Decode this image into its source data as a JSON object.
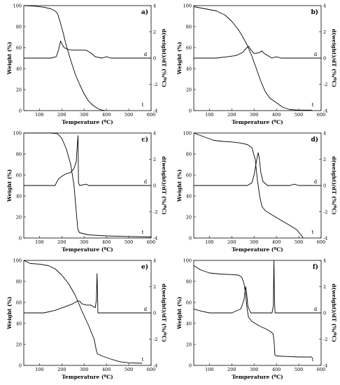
{
  "chart_data": [
    {
      "panel": "a)",
      "type": "line",
      "xlabel": "Temperature (ºC)",
      "ylabel_left": "Weight (%)",
      "ylabel_right": "d(weight)/dT (%/ºC)",
      "xlim": [
        30,
        600
      ],
      "ylim_left": [
        0,
        100
      ],
      "ylim_right": [
        -4,
        4
      ],
      "x_ticks": [
        100,
        200,
        300,
        400,
        500,
        600
      ],
      "y_ticks_left": [
        0,
        20,
        40,
        60,
        80,
        100
      ],
      "y_ticks_right": [
        -4,
        -2,
        0,
        2,
        4
      ],
      "curve_labels": {
        "derivative": "d",
        "tg": "t"
      },
      "series": [
        {
          "name": "t",
          "axis": "left",
          "points": [
            [
              30,
              100
            ],
            [
              80,
              99.5
            ],
            [
              120,
              98.5
            ],
            [
              150,
              97
            ],
            [
              170,
              95
            ],
            [
              182,
              92
            ],
            [
              192,
              85
            ],
            [
              205,
              75
            ],
            [
              220,
              62
            ],
            [
              240,
              48
            ],
            [
              260,
              35
            ],
            [
              280,
              25
            ],
            [
              300,
              16
            ],
            [
              320,
              9
            ],
            [
              340,
              5
            ],
            [
              360,
              2
            ],
            [
              380,
              0.5
            ],
            [
              395,
              0
            ]
          ]
        },
        {
          "name": "d",
          "axis": "right",
          "points": [
            [
              30,
              0
            ],
            [
              150,
              0
            ],
            [
              175,
              0.1
            ],
            [
              185,
              0.6
            ],
            [
              195,
              1.3
            ],
            [
              200,
              1.1
            ],
            [
              210,
              0.8
            ],
            [
              230,
              0.65
            ],
            [
              250,
              0.62
            ],
            [
              280,
              0.62
            ],
            [
              310,
              0.6
            ],
            [
              330,
              0.4
            ],
            [
              350,
              0.1
            ],
            [
              380,
              0
            ],
            [
              400,
              0.1
            ],
            [
              420,
              0
            ],
            [
              600,
              0
            ]
          ]
        }
      ]
    },
    {
      "panel": "b)",
      "type": "line",
      "xlabel": "Temperature (ºC)",
      "ylabel_left": "Weight (%)",
      "ylabel_right": "d(weight)/dT (%/ºC)",
      "xlim": [
        30,
        600
      ],
      "ylim_left": [
        0,
        100
      ],
      "ylim_right": [
        -4,
        4
      ],
      "x_ticks": [
        100,
        200,
        300,
        400,
        500,
        600
      ],
      "y_ticks_left": [
        0,
        20,
        40,
        60,
        80,
        100
      ],
      "y_ticks_right": [
        -4,
        -2,
        0,
        2,
        4
      ],
      "curve_labels": {
        "derivative": "d",
        "tg": "t"
      },
      "series": [
        {
          "name": "t",
          "axis": "left",
          "points": [
            [
              30,
              99
            ],
            [
              80,
              97
            ],
            [
              130,
              95
            ],
            [
              170,
              91
            ],
            [
              200,
              85
            ],
            [
              230,
              77
            ],
            [
              250,
              70
            ],
            [
              270,
              62
            ],
            [
              290,
              52
            ],
            [
              310,
              40
            ],
            [
              330,
              28
            ],
            [
              350,
              18
            ],
            [
              370,
              12
            ],
            [
              390,
              9
            ],
            [
              410,
              6
            ],
            [
              430,
              3
            ],
            [
              460,
              1
            ],
            [
              500,
              0.5
            ],
            [
              560,
              0.5
            ]
          ]
        },
        {
          "name": "d",
          "axis": "right",
          "points": [
            [
              30,
              0
            ],
            [
              130,
              0
            ],
            [
              180,
              0.1
            ],
            [
              220,
              0.2
            ],
            [
              250,
              0.45
            ],
            [
              265,
              0.75
            ],
            [
              275,
              0.9
            ],
            [
              285,
              0.65
            ],
            [
              300,
              0.35
            ],
            [
              320,
              0.4
            ],
            [
              335,
              0.55
            ],
            [
              345,
              0.35
            ],
            [
              360,
              0.2
            ],
            [
              380,
              0
            ],
            [
              400,
              0.1
            ],
            [
              420,
              0
            ],
            [
              600,
              0
            ]
          ]
        }
      ]
    },
    {
      "panel": "c)",
      "type": "line",
      "xlabel": "Temperature (ºC)",
      "ylabel_left": "Weight (%)",
      "ylabel_right": "d(weight)/dT (%/ºC)",
      "xlim": [
        30,
        600
      ],
      "ylim_left": [
        0,
        100
      ],
      "ylim_right": [
        -4,
        4
      ],
      "x_ticks": [
        100,
        200,
        300,
        400,
        500,
        600
      ],
      "y_ticks_left": [
        0,
        20,
        40,
        60,
        80,
        100
      ],
      "y_ticks_right": [
        -4,
        -2,
        0,
        2,
        4
      ],
      "curve_labels": {
        "derivative": "d",
        "tg": "t"
      },
      "series": [
        {
          "name": "t",
          "axis": "left",
          "points": [
            [
              30,
              100
            ],
            [
              150,
              100
            ],
            [
              180,
              99.5
            ],
            [
              200,
              95
            ],
            [
              220,
              85
            ],
            [
              240,
              70
            ],
            [
              255,
              50
            ],
            [
              265,
              25
            ],
            [
              272,
              8
            ],
            [
              280,
              5
            ],
            [
              320,
              3
            ],
            [
              400,
              2
            ],
            [
              500,
              1.5
            ],
            [
              600,
              1
            ]
          ]
        },
        {
          "name": "d",
          "axis": "right",
          "points": [
            [
              30,
              0
            ],
            [
              170,
              0
            ],
            [
              185,
              0.5
            ],
            [
              200,
              0.7
            ],
            [
              220,
              0.9
            ],
            [
              240,
              1.0
            ],
            [
              255,
              1.3
            ],
            [
              265,
              1.8
            ],
            [
              270,
              3.2
            ],
            [
              273,
              3.8
            ],
            [
              275,
              0.2
            ],
            [
              280,
              0
            ],
            [
              310,
              0.1
            ],
            [
              320,
              0
            ],
            [
              600,
              0
            ]
          ]
        }
      ]
    },
    {
      "panel": "d)",
      "type": "line",
      "xlabel": "Temperature (ºC)",
      "ylabel_left": "Weight (%)",
      "ylabel_right": "d(weight)/dT (%/ºC)",
      "xlim": [
        30,
        600
      ],
      "ylim_left": [
        0,
        100
      ],
      "ylim_right": [
        -4,
        4
      ],
      "x_ticks": [
        100,
        200,
        300,
        400,
        500,
        600
      ],
      "y_ticks_left": [
        0,
        20,
        40,
        60,
        80,
        100
      ],
      "y_ticks_right": [
        -4,
        -2,
        0,
        2,
        4
      ],
      "curve_labels": {
        "derivative": "d",
        "tg": "t"
      },
      "series": [
        {
          "name": "t",
          "axis": "left",
          "points": [
            [
              30,
              100
            ],
            [
              80,
              96
            ],
            [
              120,
              93
            ],
            [
              160,
              92
            ],
            [
              200,
              91.5
            ],
            [
              240,
              90.5
            ],
            [
              270,
              89
            ],
            [
              290,
              86
            ],
            [
              305,
              75
            ],
            [
              315,
              55
            ],
            [
              325,
              40
            ],
            [
              335,
              30
            ],
            [
              350,
              26
            ],
            [
              380,
              22
            ],
            [
              420,
              17
            ],
            [
              460,
              12
            ],
            [
              490,
              8
            ],
            [
              510,
              3
            ],
            [
              520,
              0
            ]
          ]
        },
        {
          "name": "d",
          "axis": "right",
          "points": [
            [
              30,
              0
            ],
            [
              270,
              0
            ],
            [
              290,
              0.2
            ],
            [
              300,
              0.8
            ],
            [
              310,
              1.8
            ],
            [
              318,
              2.5
            ],
            [
              323,
              2.1
            ],
            [
              330,
              1.0
            ],
            [
              340,
              0.3
            ],
            [
              360,
              0
            ],
            [
              460,
              0
            ],
            [
              480,
              0.1
            ],
            [
              500,
              0
            ],
            [
              600,
              0
            ]
          ]
        }
      ]
    },
    {
      "panel": "e)",
      "type": "line",
      "xlabel": "Temperature (ºC)",
      "ylabel_left": "Weight (%)",
      "ylabel_right": "d(weight)/dT (%/ºC)",
      "xlim": [
        30,
        600
      ],
      "ylim_left": [
        0,
        100
      ],
      "ylim_right": [
        -4,
        4
      ],
      "x_ticks": [
        100,
        200,
        300,
        400,
        500,
        600
      ],
      "y_ticks_left": [
        0,
        20,
        40,
        60,
        80,
        100
      ],
      "y_ticks_right": [
        -4,
        -2,
        0,
        2,
        4
      ],
      "curve_labels": {
        "derivative": "d",
        "tg": "t"
      },
      "series": [
        {
          "name": "t",
          "axis": "left",
          "points": [
            [
              30,
              100
            ],
            [
              60,
              97
            ],
            [
              100,
              96.5
            ],
            [
              140,
              95
            ],
            [
              170,
              92
            ],
            [
              200,
              86
            ],
            [
              230,
              78
            ],
            [
              260,
              67
            ],
            [
              290,
              52
            ],
            [
              320,
              38
            ],
            [
              345,
              25
            ],
            [
              355,
              14
            ],
            [
              360,
              11
            ],
            [
              380,
              9
            ],
            [
              420,
              6
            ],
            [
              460,
              3.5
            ],
            [
              500,
              2.5
            ],
            [
              560,
              2
            ]
          ]
        },
        {
          "name": "d",
          "axis": "right",
          "points": [
            [
              30,
              0
            ],
            [
              120,
              0
            ],
            [
              170,
              0.2
            ],
            [
              220,
              0.5
            ],
            [
              250,
              0.7
            ],
            [
              270,
              0.9
            ],
            [
              280,
              0.9
            ],
            [
              290,
              0.7
            ],
            [
              310,
              0.6
            ],
            [
              330,
              0.6
            ],
            [
              350,
              0.4
            ],
            [
              355,
              1.0
            ],
            [
              358,
              3.0
            ],
            [
              360,
              1.5
            ],
            [
              362,
              0
            ],
            [
              600,
              0
            ]
          ]
        }
      ]
    },
    {
      "panel": "f)",
      "type": "line",
      "xlabel": "Temperature (ºC)",
      "ylabel_left": "Weight (%)",
      "ylabel_right": "d(weight)/dT (%/ºC)",
      "xlim": [
        30,
        600
      ],
      "ylim_left": [
        0,
        100
      ],
      "ylim_right": [
        -4,
        4
      ],
      "x_ticks": [
        100,
        200,
        300,
        400,
        500,
        600
      ],
      "y_ticks_left": [
        0,
        20,
        40,
        60,
        80,
        100
      ],
      "y_ticks_right": [
        -4,
        -2,
        0,
        2,
        4
      ],
      "curve_labels": {
        "derivative": "d",
        "tg": "t"
      },
      "series": [
        {
          "name": "t",
          "axis": "left",
          "points": [
            [
              30,
              95
            ],
            [
              60,
              91
            ],
            [
              100,
              88
            ],
            [
              150,
              87
            ],
            [
              200,
              86.5
            ],
            [
              230,
              86
            ],
            [
              245,
              84
            ],
            [
              255,
              78
            ],
            [
              262,
              68
            ],
            [
              268,
              55
            ],
            [
              275,
              46
            ],
            [
              290,
              42
            ],
            [
              320,
              38
            ],
            [
              350,
              35
            ],
            [
              375,
              32
            ],
            [
              385,
              30
            ],
            [
              390,
              22
            ],
            [
              393,
              10
            ],
            [
              400,
              9
            ],
            [
              450,
              8.5
            ],
            [
              500,
              8
            ],
            [
              560,
              8
            ]
          ]
        },
        {
          "name": "d",
          "axis": "right",
          "points": [
            [
              30,
              0.3
            ],
            [
              60,
              0.15
            ],
            [
              100,
              0
            ],
            [
              200,
              0
            ],
            [
              240,
              0.3
            ],
            [
              255,
              1.0
            ],
            [
              262,
              2.0
            ],
            [
              266,
              1.6
            ],
            [
              272,
              0.5
            ],
            [
              285,
              0
            ],
            [
              380,
              0
            ],
            [
              386,
              0.5
            ],
            [
              389,
              4.0
            ],
            [
              391,
              1.0
            ],
            [
              394,
              0
            ],
            [
              600,
              0
            ]
          ]
        }
      ]
    }
  ]
}
